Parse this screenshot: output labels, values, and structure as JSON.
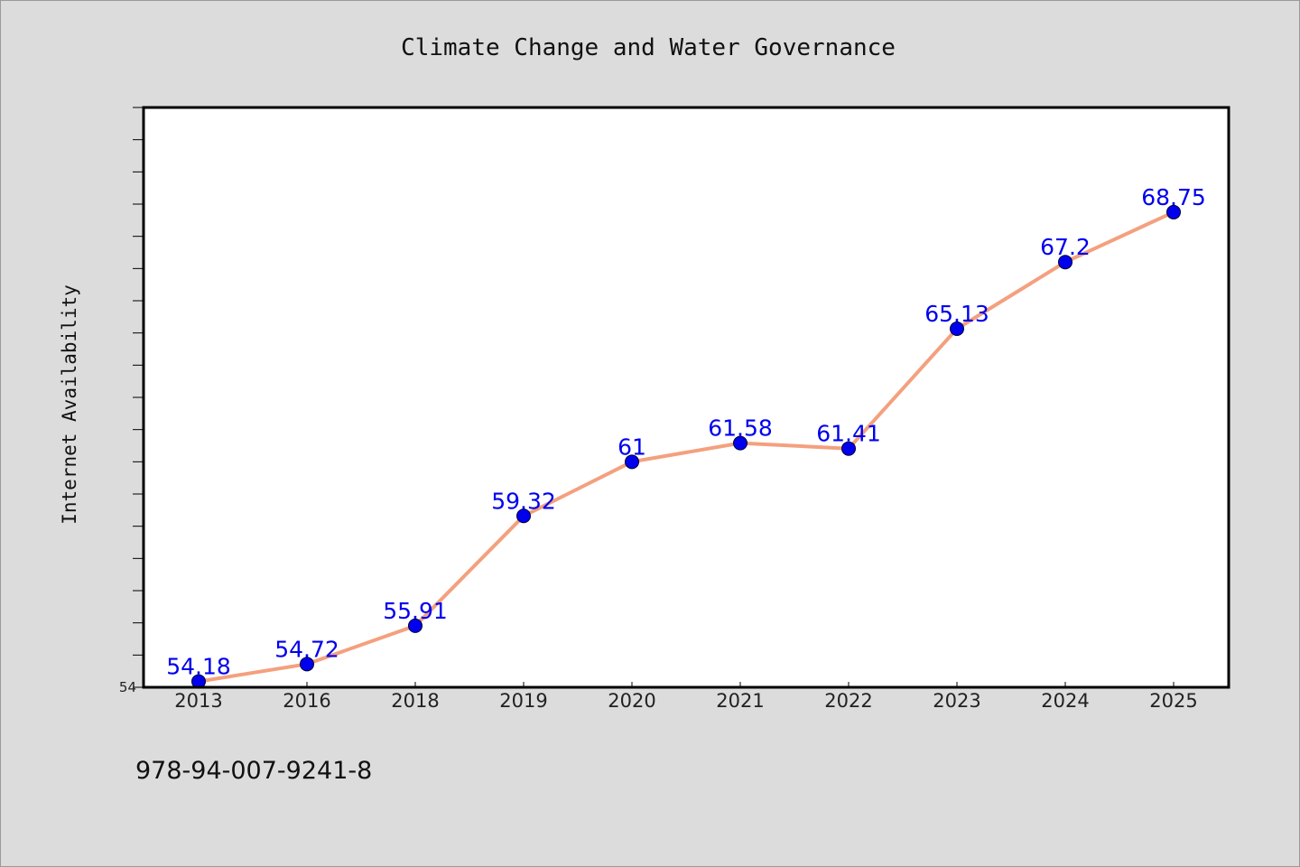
{
  "chart_data": {
    "type": "line",
    "title": "Climate Change and Water Governance",
    "xlabel": "",
    "ylabel": "Internet Availability",
    "categories": [
      "2013",
      "2016",
      "2018",
      "2019",
      "2020",
      "2021",
      "2022",
      "2023",
      "2024",
      "2025"
    ],
    "series": [
      {
        "values": [
          54.18,
          54.72,
          55.91,
          59.32,
          61,
          61.58,
          61.41,
          65.13,
          67.2,
          68.75
        ],
        "data_labels": [
          "54.18",
          "54.72",
          "55.91",
          "59.32",
          "61",
          "61.58",
          "61.41",
          "65.13",
          "67.2",
          "68.75"
        ]
      }
    ],
    "ylim": [
      54,
      72
    ],
    "y_tick_labels": [
      "54"
    ],
    "grid": false,
    "colors": {
      "line": "#f4a07e",
      "marker": "#0000ee",
      "data_label": "#0000ee",
      "background": "#dcdcdc",
      "plot_background": "#ffffff"
    }
  },
  "footer": {
    "isbn": "978-94-007-9241-8"
  }
}
